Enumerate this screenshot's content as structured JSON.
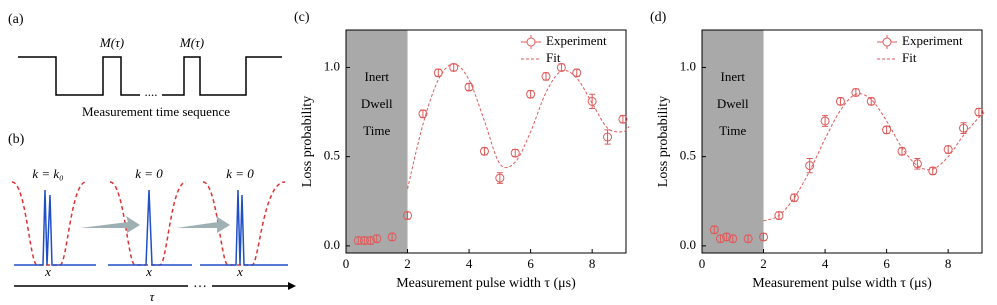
{
  "diagrams": {
    "a": {
      "label": "(a)",
      "markers": [
        "M(τ)",
        "M(τ)"
      ],
      "ellipsis": "....",
      "caption": "Measurement time sequence"
    },
    "b": {
      "label": "(b)",
      "k_labels": [
        "k = k₀",
        "k = 0",
        "k = 0"
      ],
      "x_labels": [
        "x",
        "x",
        "x"
      ],
      "axis_label": "τ",
      "ellipsis": "…"
    }
  },
  "chart_data": [
    {
      "type": "scatter",
      "title": "(c)",
      "x_label": "Measurement pulse width τ (μs)",
      "y_label": "Loss probability",
      "annotation": [
        "Inert",
        "Dwell",
        "Time"
      ],
      "shaded_xrange": [
        0,
        2
      ],
      "shade_color": "#a9a9a9",
      "x": [
        0.4,
        0.6,
        0.8,
        1.0,
        1.5,
        2.0,
        2.5,
        3.0,
        3.5,
        4.0,
        4.5,
        5.0,
        5.5,
        6.0,
        6.5,
        7.0,
        7.5,
        8.0,
        8.5,
        9.0
      ],
      "series": [
        {
          "name": "Experiment",
          "color": "#e05a5a",
          "values": [
            0.03,
            0.03,
            0.03,
            0.04,
            0.05,
            0.17,
            0.74,
            0.97,
            1.0,
            0.89,
            0.53,
            0.38,
            0.52,
            0.85,
            0.95,
            1.0,
            0.97,
            0.81,
            0.61,
            0.71
          ],
          "errors": [
            0.02,
            0.02,
            0.02,
            0.02,
            0.02,
            0.02,
            0.02,
            0.02,
            0.02,
            0.02,
            0.02,
            0.03,
            0.02,
            0.02,
            0.02,
            0.02,
            0.02,
            0.04,
            0.04,
            0.02
          ]
        },
        {
          "name": "Fit",
          "color": "#e05a5a",
          "style": "dashed",
          "x": [
            2.0,
            2.5,
            3.0,
            3.5,
            4.0,
            4.5,
            5.0,
            5.5,
            6.0,
            6.5,
            7.0,
            7.5,
            8.0,
            8.5,
            9.0,
            9.2
          ],
          "values": [
            0.32,
            0.68,
            0.93,
            1.02,
            0.93,
            0.7,
            0.46,
            0.47,
            0.64,
            0.86,
            0.98,
            0.94,
            0.8,
            0.66,
            0.64,
            0.67
          ]
        }
      ],
      "xlim": [
        0,
        9.1
      ],
      "ylim": [
        -0.04,
        1.21
      ],
      "xticks": [
        0,
        2,
        4,
        6,
        8
      ],
      "yticks": [
        {
          "value": 0,
          "label": "0.0"
        },
        0.5,
        {
          "value": 1,
          "label": "1.0"
        }
      ],
      "legend": "upper right"
    },
    {
      "type": "scatter",
      "title": "(d)",
      "x_label": "Measurement pulse width τ (μs)",
      "y_label": "Loss probability",
      "annotation": [
        "Inert",
        "Dwell",
        "Time"
      ],
      "shaded_xrange": [
        0,
        2
      ],
      "shade_color": "#a9a9a9",
      "x": [
        0.4,
        0.6,
        0.8,
        1.0,
        1.5,
        2.0,
        2.5,
        3.0,
        3.5,
        4.0,
        4.5,
        5.0,
        5.5,
        6.0,
        6.5,
        7.0,
        7.5,
        8.0,
        8.5,
        9.0
      ],
      "series": [
        {
          "name": "Experiment",
          "color": "#e05a5a",
          "values": [
            0.09,
            0.04,
            0.05,
            0.04,
            0.04,
            0.05,
            0.17,
            0.27,
            0.45,
            0.7,
            0.81,
            0.86,
            0.81,
            0.65,
            0.53,
            0.46,
            0.42,
            0.54,
            0.66,
            0.75
          ],
          "errors": [
            0.02,
            0.02,
            0.02,
            0.02,
            0.02,
            0.02,
            0.02,
            0.02,
            0.04,
            0.03,
            0.02,
            0.02,
            0.02,
            0.02,
            0.02,
            0.03,
            0.02,
            0.02,
            0.03,
            0.02
          ]
        },
        {
          "name": "Fit",
          "color": "#e05a5a",
          "style": "dashed",
          "x": [
            2.0,
            2.5,
            3.0,
            3.5,
            4.0,
            4.5,
            5.0,
            5.5,
            6.0,
            6.5,
            7.0,
            7.5,
            8.0,
            8.5,
            9.0,
            9.2
          ],
          "values": [
            0.14,
            0.17,
            0.27,
            0.42,
            0.6,
            0.76,
            0.85,
            0.82,
            0.7,
            0.55,
            0.45,
            0.43,
            0.5,
            0.62,
            0.72,
            0.75
          ]
        }
      ],
      "xlim": [
        0,
        9.1
      ],
      "ylim": [
        -0.04,
        1.21
      ],
      "xticks": [
        0,
        2,
        4,
        6,
        8
      ],
      "yticks": [
        {
          "value": 0,
          "label": "0.0"
        },
        0.5,
        {
          "value": 1,
          "label": "1.0"
        }
      ],
      "legend": "upper right"
    }
  ]
}
